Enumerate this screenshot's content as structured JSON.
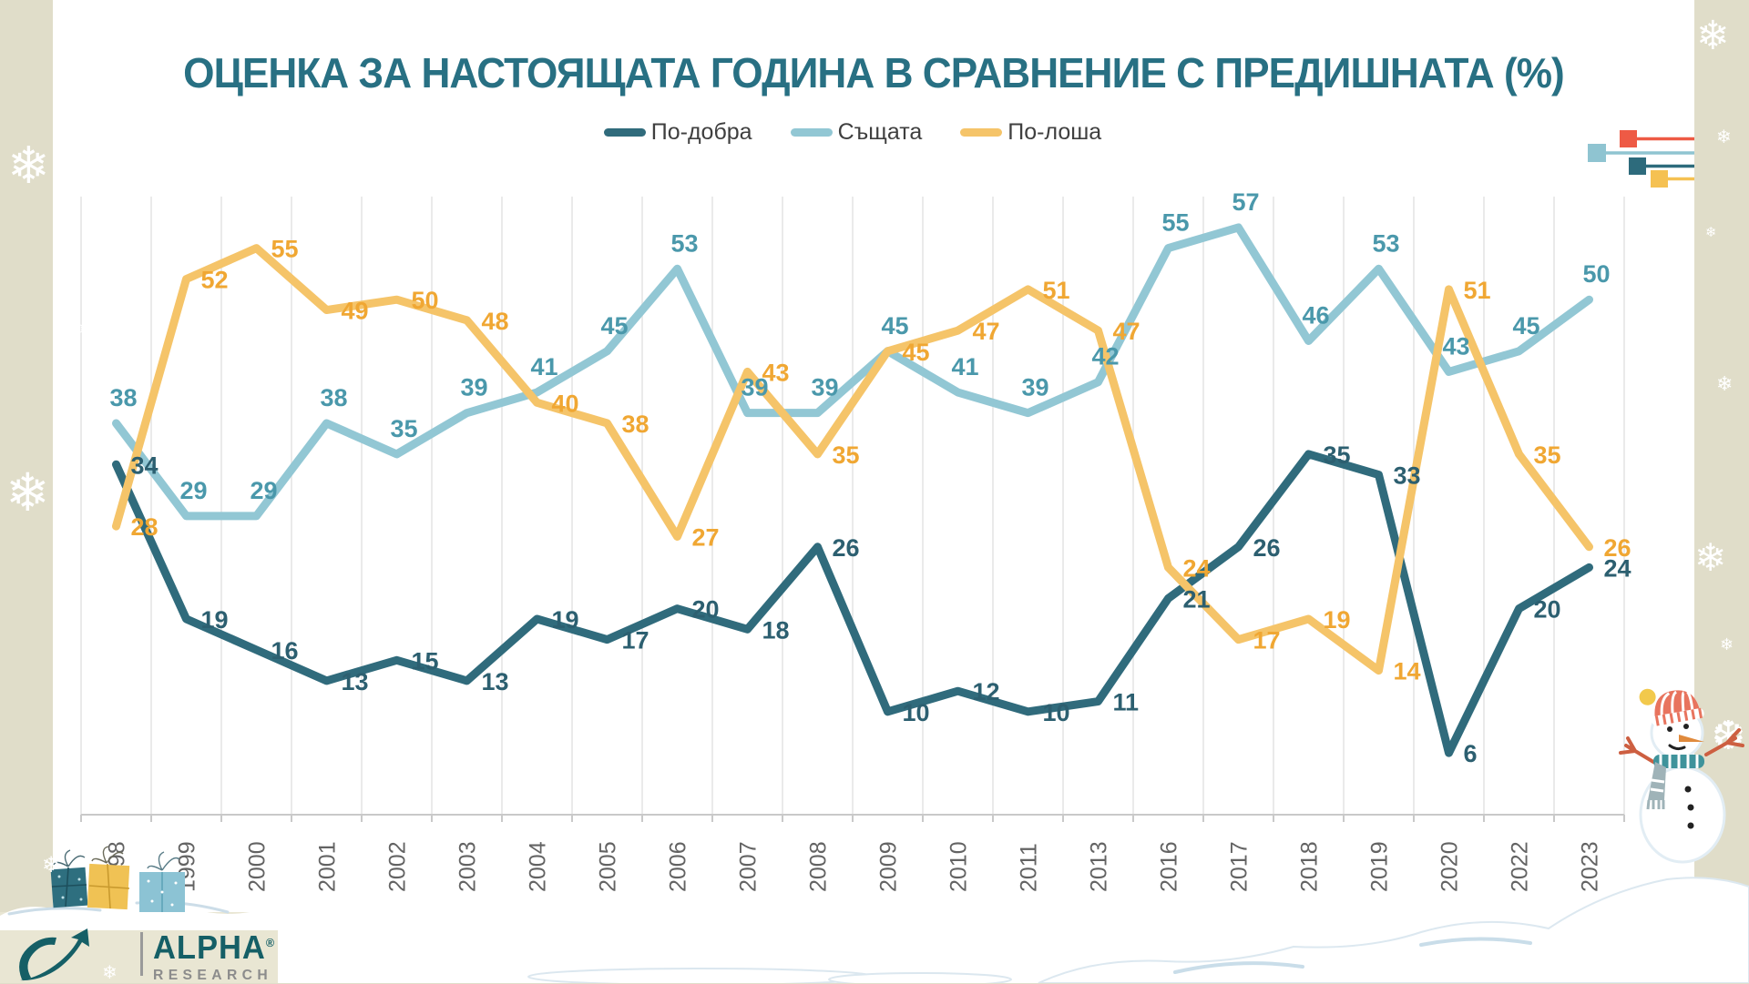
{
  "title": "ОЦЕНКА ЗА НАСТОЯЩАТА ГОДИНА В СРАВНЕНИЕ С ПРЕДИШНАТА (%)",
  "legend": [
    {
      "label": "По-добра",
      "color": "#306b7c"
    },
    {
      "label": "Същата",
      "color": "#92c7d4"
    },
    {
      "label": "По-лоша",
      "color": "#f5c469"
    }
  ],
  "chart_data": {
    "type": "line",
    "categories": [
      "1998",
      "1999",
      "2000",
      "2001",
      "2002",
      "2003",
      "2004",
      "2005",
      "2006",
      "2007",
      "2008",
      "2009",
      "2010",
      "2011",
      "2013",
      "2016",
      "2017",
      "2018",
      "2019",
      "2020",
      "2022",
      "2023"
    ],
    "series": [
      {
        "name": "По-добра",
        "color": "#306b7c",
        "label_color": "#2c5f70",
        "values": [
          34,
          19,
          16,
          13,
          15,
          13,
          19,
          17,
          20,
          18,
          26,
          10,
          12,
          10,
          11,
          21,
          26,
          35,
          33,
          6,
          20,
          24
        ]
      },
      {
        "name": "Същата",
        "color": "#92c7d4",
        "label_color": "#4a98ab",
        "values": [
          38,
          29,
          29,
          38,
          35,
          39,
          41,
          45,
          53,
          39,
          39,
          45,
          41,
          39,
          42,
          55,
          57,
          46,
          53,
          43,
          45,
          50
        ]
      },
      {
        "name": "По-лоша",
        "color": "#f5c469",
        "label_color": "#f0a733",
        "values": [
          28,
          52,
          55,
          49,
          50,
          48,
          40,
          38,
          27,
          43,
          35,
          45,
          47,
          51,
          47,
          24,
          17,
          19,
          14,
          51,
          35,
          26
        ]
      }
    ],
    "ylim": [
      0,
      60
    ],
    "y_axis_visible": false,
    "grid": "vertical-between-categories",
    "legend_position": "top-center",
    "data_labels": true,
    "x_tick_rotation": 90
  },
  "branding": {
    "logo_text_primary": "ALPHA",
    "logo_text_secondary": "RESEARCH",
    "registered_mark": "®"
  },
  "decorations": {
    "snowflake_glyph": "❄",
    "corner_marker_colors": [
      "#ee5a45",
      "#8fc4d1",
      "#2d6b7c",
      "#f5c152"
    ],
    "theme": "winter / christmas: snowflakes, gift boxes, snowman, snow drifts",
    "background_color": "#e0ddc9",
    "title_color": "#287083"
  }
}
